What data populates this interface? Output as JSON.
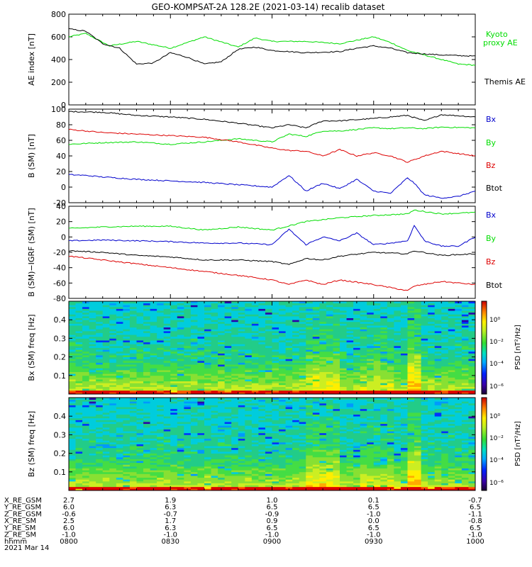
{
  "title": "GEO-KOMPSAT-2A 128.2E (2021-03-14) recalib dataset",
  "date_label": "2021 Mar 14",
  "colorbar": {
    "label_psd": "PSD",
    "label_unit": "[nT²/Hz]",
    "ticks": [
      "10⁰",
      "10⁻²",
      "10⁻⁴",
      "10⁻⁶"
    ]
  },
  "ephemeris": {
    "rows": [
      {
        "name": "X_RE_GSM",
        "values": [
          "2.7",
          "1.9",
          "1.0",
          "0.1",
          "-0.7"
        ]
      },
      {
        "name": "Y_RE_GSM",
        "values": [
          "6.0",
          "6.3",
          "6.5",
          "6.5",
          "6.5"
        ]
      },
      {
        "name": "Z_RE_GSM",
        "values": [
          "-0.6",
          "-0.7",
          "-0.9",
          "-1.0",
          "-1.1"
        ]
      },
      {
        "name": "X_RE_SM",
        "values": [
          "2.5",
          "1.7",
          "0.9",
          "0.0",
          "-0.8"
        ]
      },
      {
        "name": "Y_RE_SM",
        "values": [
          "6.0",
          "6.3",
          "6.5",
          "6.5",
          "6.5"
        ]
      },
      {
        "name": "Z_RE_SM",
        "values": [
          "-1.0",
          "-1.0",
          "-1.0",
          "-1.0",
          "-1.0"
        ]
      },
      {
        "name": "hhmm",
        "values": [
          "0800",
          "0830",
          "0900",
          "0930",
          "1000"
        ]
      }
    ]
  },
  "chart_data": [
    {
      "type": "line",
      "ylabel": "AE index [nT]",
      "ylim": [
        0,
        800
      ],
      "yticks": [
        "0",
        "200",
        "400",
        "600",
        "800"
      ],
      "x_unit": "minutes after 0800 UT",
      "xlim": [
        0,
        120
      ],
      "series": [
        {
          "name": "Kyoto proxy AE",
          "color": "#00dd00",
          "x": [
            0,
            5,
            12,
            20,
            30,
            40,
            50,
            55,
            60,
            70,
            80,
            90,
            95,
            100,
            110,
            115,
            120
          ],
          "y": [
            600,
            630,
            520,
            560,
            500,
            600,
            510,
            590,
            560,
            560,
            540,
            600,
            550,
            480,
            400,
            360,
            350
          ]
        },
        {
          "name": "Themis AE",
          "color": "#000000",
          "x": [
            0,
            5,
            10,
            15,
            20,
            25,
            30,
            35,
            40,
            45,
            50,
            55,
            60,
            70,
            80,
            85,
            90,
            95,
            100,
            110,
            120
          ],
          "y": [
            670,
            650,
            540,
            500,
            360,
            370,
            460,
            420,
            360,
            380,
            490,
            510,
            480,
            460,
            470,
            500,
            520,
            500,
            460,
            440,
            430
          ]
        }
      ],
      "legend_labels": [
        "Kyoto",
        "proxy AE",
        "Themis AE"
      ]
    },
    {
      "type": "line",
      "ylabel": "B (SM) [nT]",
      "ylim": [
        -20,
        100
      ],
      "yticks": [
        "-20",
        "0",
        "20",
        "40",
        "60",
        "80",
        "100"
      ],
      "xlim": [
        0,
        120
      ],
      "series": [
        {
          "name": "Btot",
          "color": "#000000",
          "x": [
            0,
            10,
            20,
            30,
            40,
            50,
            60,
            65,
            70,
            75,
            80,
            90,
            95,
            100,
            105,
            110,
            120
          ],
          "y": [
            97,
            96,
            92,
            90,
            87,
            82,
            76,
            80,
            76,
            85,
            85,
            88,
            90,
            92,
            85,
            93,
            90
          ]
        },
        {
          "name": "By",
          "color": "#00dd00",
          "x": [
            0,
            10,
            20,
            30,
            40,
            50,
            60,
            65,
            70,
            75,
            80,
            90,
            95,
            100,
            105,
            110,
            120
          ],
          "y": [
            55,
            57,
            58,
            55,
            58,
            62,
            58,
            68,
            65,
            72,
            72,
            76,
            75,
            76,
            75,
            77,
            76
          ]
        },
        {
          "name": "Bz",
          "color": "#dd0000",
          "x": [
            0,
            10,
            20,
            30,
            40,
            50,
            60,
            65,
            70,
            75,
            80,
            85,
            90,
            95,
            100,
            105,
            110,
            120
          ],
          "y": [
            74,
            70,
            68,
            66,
            64,
            58,
            50,
            47,
            46,
            40,
            48,
            40,
            44,
            40,
            32,
            40,
            46,
            40
          ]
        },
        {
          "name": "Bx",
          "color": "#0000cc",
          "x": [
            0,
            5,
            10,
            20,
            30,
            40,
            50,
            60,
            65,
            70,
            75,
            80,
            85,
            90,
            95,
            100,
            102,
            105,
            110,
            115,
            120
          ],
          "y": [
            16,
            15,
            13,
            10,
            8,
            6,
            3,
            0,
            15,
            -5,
            5,
            -2,
            10,
            -5,
            -8,
            12,
            5,
            -10,
            -14,
            -12,
            -5
          ]
        }
      ],
      "legend_labels": [
        "Bx",
        "By",
        "Bz",
        "Btot"
      ]
    },
    {
      "type": "line",
      "ylabel": "B (SM)−IGRF (SM) [nT]",
      "ylim": [
        -80,
        40
      ],
      "yticks": [
        "-80",
        "-60",
        "-40",
        "-20",
        "0",
        "20",
        "40"
      ],
      "xlim": [
        0,
        120
      ],
      "series": [
        {
          "name": "By",
          "color": "#00dd00",
          "x": [
            0,
            10,
            20,
            30,
            40,
            50,
            60,
            70,
            80,
            90,
            100,
            102,
            110,
            120
          ],
          "y": [
            11,
            13,
            14,
            14,
            9,
            13,
            9,
            20,
            25,
            28,
            30,
            35,
            30,
            32
          ]
        },
        {
          "name": "Bx",
          "color": "#0000cc",
          "x": [
            0,
            10,
            20,
            30,
            40,
            50,
            60,
            65,
            70,
            75,
            80,
            85,
            90,
            95,
            100,
            102,
            105,
            110,
            115,
            120
          ],
          "y": [
            -5,
            -4,
            -5,
            -6,
            -8,
            -8,
            -10,
            10,
            -10,
            0,
            -5,
            5,
            -10,
            -8,
            -5,
            15,
            -5,
            -12,
            -12,
            0
          ]
        },
        {
          "name": "Btot",
          "color": "#000000",
          "x": [
            0,
            10,
            20,
            30,
            40,
            50,
            60,
            65,
            70,
            75,
            80,
            90,
            100,
            102,
            110,
            120
          ],
          "y": [
            -18,
            -20,
            -24,
            -26,
            -30,
            -30,
            -32,
            -36,
            -28,
            -30,
            -25,
            -20,
            -22,
            -18,
            -24,
            -22
          ]
        },
        {
          "name": "Bz",
          "color": "#dd0000",
          "x": [
            0,
            10,
            20,
            30,
            40,
            50,
            60,
            65,
            70,
            75,
            80,
            90,
            100,
            102,
            110,
            120
          ],
          "y": [
            -25,
            -30,
            -35,
            -40,
            -45,
            -50,
            -56,
            -62,
            -56,
            -62,
            -56,
            -62,
            -70,
            -64,
            -58,
            -62
          ]
        }
      ],
      "legend_labels": [
        "Bx",
        "By",
        "Bz",
        "Btot"
      ]
    },
    {
      "type": "heatmap",
      "ylabel": "Bx (SM) freq [Hz]",
      "ylim": [
        0,
        0.5
      ],
      "yticks": [
        "0.1",
        "0.2",
        "0.3",
        "0.4"
      ],
      "xlim": [
        0,
        120
      ],
      "colorbar_label": "PSD [nT²/Hz]"
    },
    {
      "type": "heatmap",
      "ylabel": "Bz (SM) freq [Hz]",
      "ylim": [
        0,
        0.5
      ],
      "yticks": [
        "0.1",
        "0.2",
        "0.3",
        "0.4"
      ],
      "xlim": [
        0,
        120
      ],
      "colorbar_label": "PSD [nT²/Hz]"
    }
  ]
}
